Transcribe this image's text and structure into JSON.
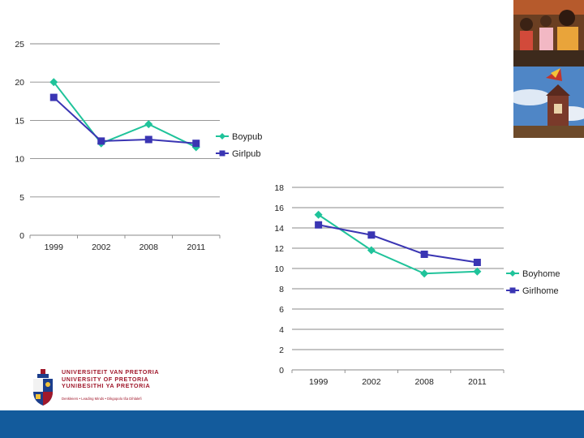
{
  "chart_data": [
    {
      "type": "line",
      "title": "",
      "categories": [
        "1999",
        "2002",
        "2008",
        "2011"
      ],
      "ylim": [
        0,
        25
      ],
      "yticks": [
        "0",
        "5",
        "10",
        "15",
        "20",
        "25"
      ],
      "grid": true,
      "legend": "right",
      "series": [
        {
          "name": "Boypub",
          "values": [
            20,
            12,
            14.5,
            11.5
          ],
          "color": "#1fc39a",
          "marker": "diamond"
        },
        {
          "name": "Girlpub",
          "values": [
            18,
            12.3,
            12.5,
            12
          ],
          "color": "#3a35b3",
          "marker": "square"
        }
      ]
    },
    {
      "type": "line",
      "title": "",
      "categories": [
        "1999",
        "2002",
        "2008",
        "2011"
      ],
      "ylim": [
        0,
        18
      ],
      "yticks": [
        "0",
        "2",
        "4",
        "6",
        "8",
        "10",
        "12",
        "14",
        "16",
        "18"
      ],
      "grid": true,
      "legend": "right",
      "series": [
        {
          "name": "Boyhome",
          "values": [
            15.3,
            11.8,
            9.5,
            9.7
          ],
          "color": "#1fc39a",
          "marker": "diamond"
        },
        {
          "name": "Girlhome",
          "values": [
            14.3,
            13.3,
            11.4,
            10.6
          ],
          "color": "#3a35b3",
          "marker": "square"
        }
      ]
    }
  ],
  "logo": {
    "line1": "UNIVERSITEIT VAN PRETORIA",
    "line2": "UNIVERSITY OF PRETORIA",
    "line3": "YUNIBESITHI YA PRETORIA",
    "tagline": "Denkleiers • Leading Minds • Dikgopolo tša Dihlalefi"
  },
  "colors": {
    "footer": "#135b9c",
    "brand": "#a0182b"
  }
}
